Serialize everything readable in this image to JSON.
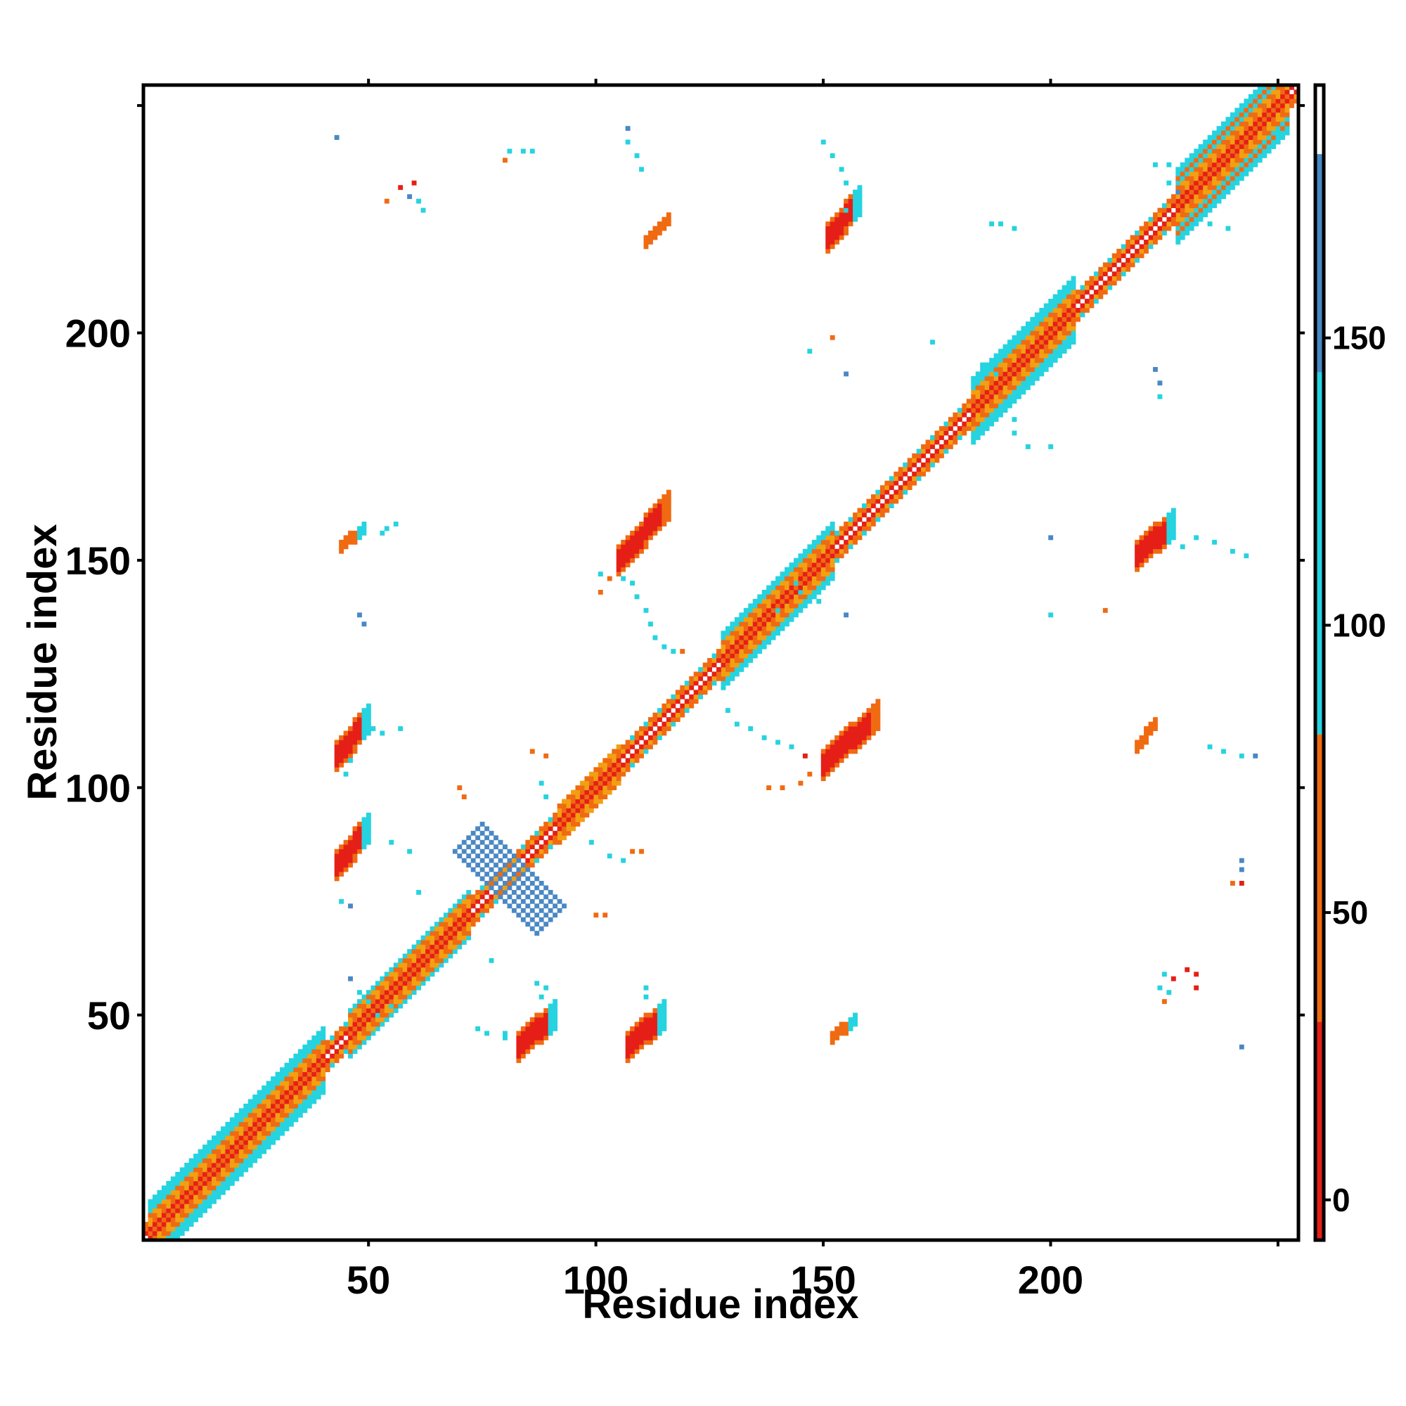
{
  "chart_data": {
    "type": "heatmap",
    "title": "",
    "xlabel": "Residue index",
    "ylabel": "Residue index",
    "xlim": [
      1,
      254
    ],
    "ylim": [
      1,
      254
    ],
    "x_ticks": [
      50,
      100,
      150,
      200
    ],
    "y_ticks": [
      50,
      100,
      150,
      200
    ],
    "colorbar": {
      "ticks": [
        0,
        50,
        100,
        150
      ],
      "range": [
        -7,
        194
      ],
      "bands": [
        {
          "from": -7,
          "to": 31,
          "color": "#e51f17"
        },
        {
          "from": 31,
          "to": 81,
          "color": "#f06a12"
        },
        {
          "from": 81,
          "to": 144,
          "color": "#26d3e0"
        },
        {
          "from": 144,
          "to": 182,
          "color": "#4a88c4"
        },
        {
          "from": 182,
          "to": 194,
          "color": "#ffffff"
        }
      ]
    },
    "colors": {
      "red": "#e51f17",
      "orange": "#f06a12",
      "amber": "#f2a012",
      "cyan": "#26d3e0",
      "blue": "#4a88c4"
    },
    "diagonal_band": {
      "from": 1,
      "to": 254,
      "halfwidth": 3
    },
    "helix_segments": [
      {
        "from": 2,
        "to": 40,
        "halfwidth": 7
      },
      {
        "from": 46,
        "to": 72,
        "halfwidth": 5
      },
      {
        "from": 92,
        "to": 105,
        "halfwidth": 4
      },
      {
        "from": 128,
        "to": 152,
        "halfwidth": 6
      },
      {
        "from": 183,
        "to": 205,
        "halfwidth": 7
      },
      {
        "from": 228,
        "to": 252,
        "halfwidth": 8
      }
    ],
    "contact_streaks": [
      {
        "x0": 43,
        "y0": 107,
        "x1": 50,
        "y1": 115,
        "color": "red",
        "w": 3,
        "cap": "cyan"
      },
      {
        "x0": 43,
        "y0": 83,
        "x1": 50,
        "y1": 91,
        "color": "red",
        "w": 3,
        "cap": "cyan"
      },
      {
        "x0": 83,
        "y0": 43,
        "x1": 91,
        "y1": 50,
        "color": "red",
        "w": 3,
        "cap": "cyan"
      },
      {
        "x0": 107,
        "y0": 43,
        "x1": 115,
        "y1": 50,
        "color": "red",
        "w": 3,
        "cap": "cyan"
      },
      {
        "x0": 105,
        "y0": 150,
        "x1": 116,
        "y1": 162,
        "color": "red",
        "w": 3,
        "cap": "orange"
      },
      {
        "x0": 150,
        "y0": 105,
        "x1": 162,
        "y1": 116,
        "color": "red",
        "w": 3,
        "cap": "orange"
      },
      {
        "x0": 151,
        "y0": 221,
        "x1": 158,
        "y1": 229,
        "color": "red",
        "w": 3,
        "cap": "cyan"
      },
      {
        "x0": 219,
        "y0": 151,
        "x1": 227,
        "y1": 158,
        "color": "red",
        "w": 3,
        "cap": "cyan"
      },
      {
        "x0": 72,
        "y0": 89,
        "x1": 90,
        "y1": 71,
        "color": "blue",
        "w": 3,
        "cap": "blue"
      },
      {
        "x0": 111,
        "y0": 220,
        "x1": 116,
        "y1": 225,
        "color": "orange",
        "w": 1,
        "cap": "orange"
      },
      {
        "x0": 44,
        "y0": 153,
        "x1": 49,
        "y1": 157,
        "color": "orange",
        "w": 1,
        "cap": "cyan"
      },
      {
        "x0": 152,
        "y0": 45,
        "x1": 157,
        "y1": 49,
        "color": "orange",
        "w": 1,
        "cap": "cyan"
      },
      {
        "x0": 219,
        "y0": 109,
        "x1": 223,
        "y1": 114,
        "color": "orange",
        "w": 1,
        "cap": "orange"
      }
    ],
    "contact_dots": [
      [
        55,
        52,
        "cyan"
      ],
      [
        48,
        55,
        "cyan"
      ],
      [
        52,
        50,
        "cyan"
      ],
      [
        50,
        53,
        "cyan"
      ],
      [
        46,
        58,
        "blue"
      ],
      [
        74,
        47,
        "cyan"
      ],
      [
        76,
        46,
        "cyan"
      ],
      [
        87,
        57,
        "cyan"
      ],
      [
        89,
        56,
        "cyan"
      ],
      [
        88,
        54,
        "cyan"
      ],
      [
        111,
        56,
        "cyan"
      ],
      [
        111,
        54,
        "cyan"
      ],
      [
        70,
        100,
        "orange"
      ],
      [
        71,
        98,
        "orange"
      ],
      [
        86,
        108,
        "orange"
      ],
      [
        89,
        107,
        "orange"
      ],
      [
        88,
        101,
        "cyan"
      ],
      [
        89,
        98,
        "cyan"
      ],
      [
        103,
        85,
        "cyan"
      ],
      [
        106,
        84,
        "cyan"
      ],
      [
        108,
        86,
        "orange"
      ],
      [
        110,
        86,
        "orange"
      ],
      [
        99,
        88,
        "cyan"
      ],
      [
        55,
        88,
        "cyan"
      ],
      [
        59,
        86,
        "cyan"
      ],
      [
        61,
        77,
        "cyan"
      ],
      [
        44,
        75,
        "cyan"
      ],
      [
        46,
        74,
        "blue"
      ],
      [
        100,
        72,
        "orange"
      ],
      [
        102,
        72,
        "orange"
      ],
      [
        51,
        113,
        "cyan"
      ],
      [
        53,
        112,
        "cyan"
      ],
      [
        57,
        113,
        "cyan"
      ],
      [
        46,
        106,
        "cyan"
      ],
      [
        45,
        103,
        "cyan"
      ],
      [
        77,
        62,
        "cyan"
      ],
      [
        129,
        117,
        "cyan"
      ],
      [
        131,
        114,
        "cyan"
      ],
      [
        134,
        113,
        "cyan"
      ],
      [
        137,
        111,
        "cyan"
      ],
      [
        140,
        110,
        "cyan"
      ],
      [
        143,
        109,
        "cyan"
      ],
      [
        146,
        107,
        "red"
      ],
      [
        147,
        103,
        "orange"
      ],
      [
        145,
        101,
        "orange"
      ],
      [
        141,
        100,
        "orange"
      ],
      [
        138,
        100,
        "orange"
      ],
      [
        101,
        147,
        "cyan"
      ],
      [
        103,
        146,
        "orange"
      ],
      [
        106,
        146,
        "cyan"
      ],
      [
        108,
        145,
        "cyan"
      ],
      [
        109,
        142,
        "cyan"
      ],
      [
        111,
        139,
        "cyan"
      ],
      [
        112,
        136,
        "cyan"
      ],
      [
        113,
        133,
        "cyan"
      ],
      [
        115,
        131,
        "cyan"
      ],
      [
        117,
        130,
        "cyan"
      ],
      [
        119,
        130,
        "orange"
      ],
      [
        101,
        143,
        "orange"
      ],
      [
        48,
        138,
        "blue"
      ],
      [
        49,
        136,
        "blue"
      ],
      [
        54,
        157,
        "cyan"
      ],
      [
        53,
        156,
        "cyan"
      ],
      [
        56,
        158,
        "cyan"
      ],
      [
        140,
        139,
        "cyan"
      ],
      [
        144,
        145,
        "cyan"
      ],
      [
        145,
        143,
        "cyan"
      ],
      [
        149,
        141,
        "cyan"
      ],
      [
        155,
        138,
        "blue"
      ],
      [
        229,
        153,
        "cyan"
      ],
      [
        232,
        155,
        "cyan"
      ],
      [
        236,
        154,
        "cyan"
      ],
      [
        240,
        152,
        "cyan"
      ],
      [
        243,
        151,
        "cyan"
      ],
      [
        200,
        155,
        "blue"
      ],
      [
        235,
        109,
        "cyan"
      ],
      [
        238,
        108,
        "cyan"
      ],
      [
        242,
        107,
        "cyan"
      ],
      [
        245,
        107,
        "blue"
      ],
      [
        200,
        138,
        "cyan"
      ],
      [
        212,
        139,
        "orange"
      ],
      [
        223,
        192,
        "blue"
      ],
      [
        224,
        189,
        "blue"
      ],
      [
        224,
        186,
        "cyan"
      ],
      [
        174,
        198,
        "cyan"
      ],
      [
        185,
        193,
        "cyan"
      ],
      [
        188,
        191,
        "cyan"
      ],
      [
        192,
        178,
        "cyan"
      ],
      [
        195,
        175,
        "cyan"
      ],
      [
        200,
        175,
        "cyan"
      ],
      [
        192,
        181,
        "cyan"
      ],
      [
        155,
        191,
        "blue"
      ],
      [
        147,
        196,
        "cyan"
      ],
      [
        152,
        199,
        "orange"
      ],
      [
        150,
        242,
        "cyan"
      ],
      [
        152,
        239,
        "cyan"
      ],
      [
        154,
        236,
        "cyan"
      ],
      [
        155,
        233,
        "cyan"
      ],
      [
        157,
        230,
        "cyan"
      ],
      [
        155,
        227,
        "cyan"
      ],
      [
        107,
        245,
        "blue"
      ],
      [
        107,
        242,
        "cyan"
      ],
      [
        109,
        239,
        "cyan"
      ],
      [
        110,
        236,
        "cyan"
      ],
      [
        80,
        238,
        "orange"
      ],
      [
        81,
        240,
        "cyan"
      ],
      [
        84,
        240,
        "cyan"
      ],
      [
        86,
        240,
        "cyan"
      ],
      [
        43,
        243,
        "blue"
      ],
      [
        59,
        230,
        "blue"
      ],
      [
        61,
        229,
        "cyan"
      ],
      [
        62,
        227,
        "cyan"
      ],
      [
        57,
        232,
        "red"
      ],
      [
        60,
        233,
        "red"
      ],
      [
        54,
        229,
        "orange"
      ],
      [
        187,
        224,
        "cyan"
      ],
      [
        189,
        224,
        "cyan"
      ],
      [
        192,
        223,
        "cyan"
      ],
      [
        223,
        237,
        "cyan"
      ],
      [
        226,
        237,
        "cyan"
      ],
      [
        226,
        233,
        "cyan"
      ],
      [
        228,
        231,
        "blue"
      ],
      [
        233,
        225,
        "cyan"
      ],
      [
        235,
        224,
        "cyan"
      ],
      [
        239,
        223,
        "cyan"
      ],
      [
        250,
        244,
        "cyan"
      ],
      [
        252,
        244,
        "cyan"
      ],
      [
        240,
        79,
        "orange"
      ],
      [
        242,
        79,
        "red"
      ],
      [
        242,
        82,
        "blue"
      ],
      [
        242,
        84,
        "blue"
      ],
      [
        225,
        59,
        "cyan"
      ],
      [
        227,
        58,
        "red"
      ],
      [
        230,
        60,
        "red"
      ],
      [
        232,
        59,
        "red"
      ],
      [
        232,
        56,
        "red"
      ],
      [
        224,
        56,
        "cyan"
      ],
      [
        226,
        55,
        "cyan"
      ],
      [
        225,
        53,
        "orange"
      ],
      [
        242,
        43,
        "blue"
      ],
      [
        80,
        45,
        "cyan"
      ],
      [
        80,
        46,
        "cyan"
      ]
    ]
  }
}
